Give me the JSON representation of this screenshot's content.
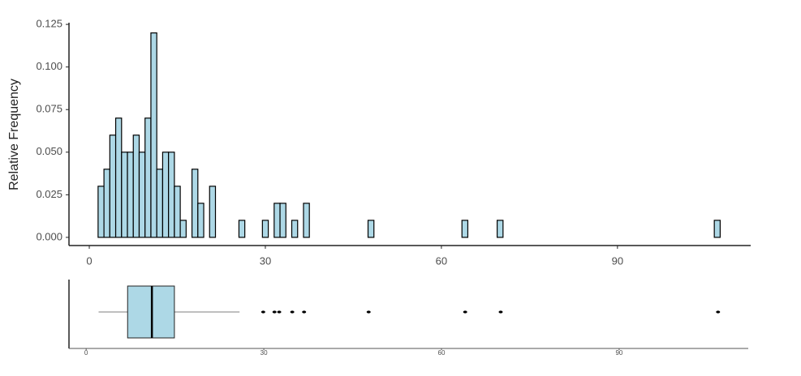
{
  "chart_data": [
    {
      "type": "histogram",
      "ylabel": "Relative Frequency",
      "color": "#add8e6",
      "edgecolor": "#000000",
      "bins": [
        1.5,
        2.5,
        3.5,
        4.5,
        5.5,
        6.5,
        7.5,
        8.5,
        9.5,
        10.5,
        11.5,
        12.5,
        13.5,
        14.5,
        15.5,
        16.5,
        17.5,
        18.5,
        19.5,
        20.5,
        21.5,
        22.5,
        23.5,
        24.5,
        25.5,
        26.5,
        27.5,
        28.5,
        29.5,
        30.5,
        31.5,
        32.5,
        33.5,
        34.5,
        35.5,
        36.5,
        37.5,
        38.5,
        39.5,
        40.5,
        41.5,
        42.5,
        43.5,
        44.5,
        45.5,
        46.5,
        47.5,
        48.5,
        49.5,
        50.5,
        51.5,
        52.5,
        53.5,
        54.5,
        55.5,
        56.5,
        57.5,
        58.5,
        59.5,
        60.5,
        61.5,
        62.5,
        63.5,
        64.5,
        65.5,
        66.5,
        67.5,
        68.5,
        69.5,
        70.5,
        71.5,
        72.5,
        73.5,
        74.5,
        75.5,
        76.5,
        77.5,
        78.5,
        79.5,
        80.5,
        81.5,
        82.5,
        83.5,
        84.5,
        85.5,
        86.5,
        87.5,
        88.5,
        89.5,
        90.5,
        91.5,
        92.5,
        93.5,
        94.5,
        95.5,
        96.5,
        97.5,
        98.5,
        99.5,
        100.5,
        101.5,
        102.5,
        103.5,
        104.5,
        105.5,
        106.5,
        107.5
      ],
      "values": [
        0.03,
        0.04,
        0.06,
        0.07,
        0.05,
        0.05,
        0.06,
        0.05,
        0.07,
        0.12,
        0.04,
        0.05,
        0.05,
        0.03,
        0.01,
        0,
        0.04,
        0.02,
        0,
        0.03,
        0,
        0,
        0,
        0,
        0.01,
        0,
        0,
        0,
        0.01,
        0,
        0.02,
        0.02,
        0,
        0.01,
        0,
        0.02,
        0,
        0,
        0,
        0,
        0,
        0,
        0,
        0,
        0,
        0,
        0.01,
        0,
        0,
        0,
        0,
        0,
        0,
        0,
        0,
        0,
        0,
        0,
        0,
        0,
        0,
        0,
        0.01,
        0,
        0,
        0,
        0,
        0,
        0.01,
        0,
        0,
        0,
        0,
        0,
        0,
        0,
        0,
        0,
        0,
        0,
        0,
        0,
        0,
        0,
        0,
        0,
        0,
        0,
        0,
        0,
        0,
        0,
        0,
        0,
        0,
        0,
        0,
        0,
        0,
        0,
        0,
        0,
        0,
        0,
        0,
        0.01
      ],
      "xlim": [
        -3.46,
        112.7
      ],
      "xticks": [
        0,
        30,
        60,
        90
      ],
      "ylim": [
        -0.0048,
        0.126
      ],
      "yticks": [
        {
          "value": 0,
          "label": "0.000"
        },
        {
          "value": 0.025,
          "label": "0.025"
        },
        {
          "value": 0.05,
          "label": "0.050"
        },
        {
          "value": 0.075,
          "label": "0.075"
        },
        {
          "value": 0.1,
          "label": "0.100"
        },
        {
          "value": 0.125,
          "label": "0.125"
        }
      ]
    },
    {
      "type": "box",
      "color": "#add8e6",
      "min": 2.1,
      "q1": 7.0,
      "median": 11.1,
      "q3": 14.9,
      "max": 25.9,
      "outliers": [
        29.9,
        31.8,
        32.6,
        34.8,
        36.8,
        47.7,
        64.0,
        70.0,
        106.7
      ],
      "xlim": [
        -2.9,
        111.8
      ],
      "xticks": [
        0,
        30,
        60,
        90
      ]
    }
  ]
}
